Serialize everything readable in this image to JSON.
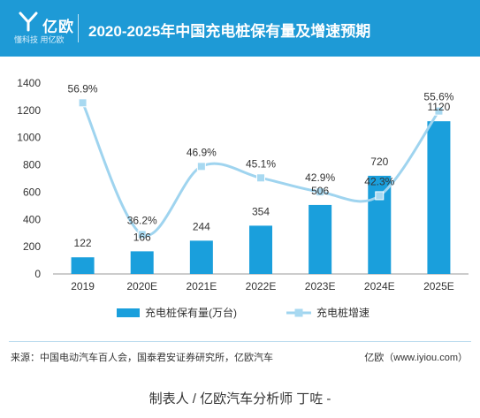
{
  "header": {
    "logo_name": "亿欧",
    "logo_tagline": "懂科技 用亿欧",
    "title": "2020-2025年中国充电桩保有量及增速预期"
  },
  "chart_data": {
    "type": "bar",
    "categories": [
      "2019",
      "2020E",
      "2021E",
      "2022E",
      "2023E",
      "2024E",
      "2025E"
    ],
    "series": [
      {
        "name": "充电桩保有量(万台)",
        "type": "bar",
        "values": [
          122,
          166,
          244,
          354,
          506,
          720,
          1120
        ],
        "labels": [
          "122",
          "166",
          "244",
          "354",
          "506",
          "720",
          "1120"
        ]
      },
      {
        "name": "充电桩增速",
        "type": "line",
        "values": [
          56.9,
          36.2,
          46.9,
          45.1,
          42.9,
          42.3,
          55.6
        ],
        "labels": [
          "56.9%",
          "36.2%",
          "46.9%",
          "45.1%",
          "42.9%",
          "42.3%",
          "55.6%"
        ]
      }
    ],
    "yticks": [
      "0",
      "200",
      "400",
      "600",
      "800",
      "1000",
      "1200",
      "1400"
    ],
    "ylim": [
      0,
      1400
    ],
    "y2lim": [
      30,
      60
    ],
    "legend_position": "bottom",
    "colors": {
      "bar": "#1a9fdc",
      "line": "#9fd4ef",
      "marker": "#a8d9f1"
    }
  },
  "footer": {
    "source": "来源：中国电动汽车百人会，国泰君安证券研究所，亿欧汽车",
    "site": "亿欧（www.iyiou.com）",
    "maker": "制表人 /  亿欧汽车分析师 丁咗 -"
  }
}
